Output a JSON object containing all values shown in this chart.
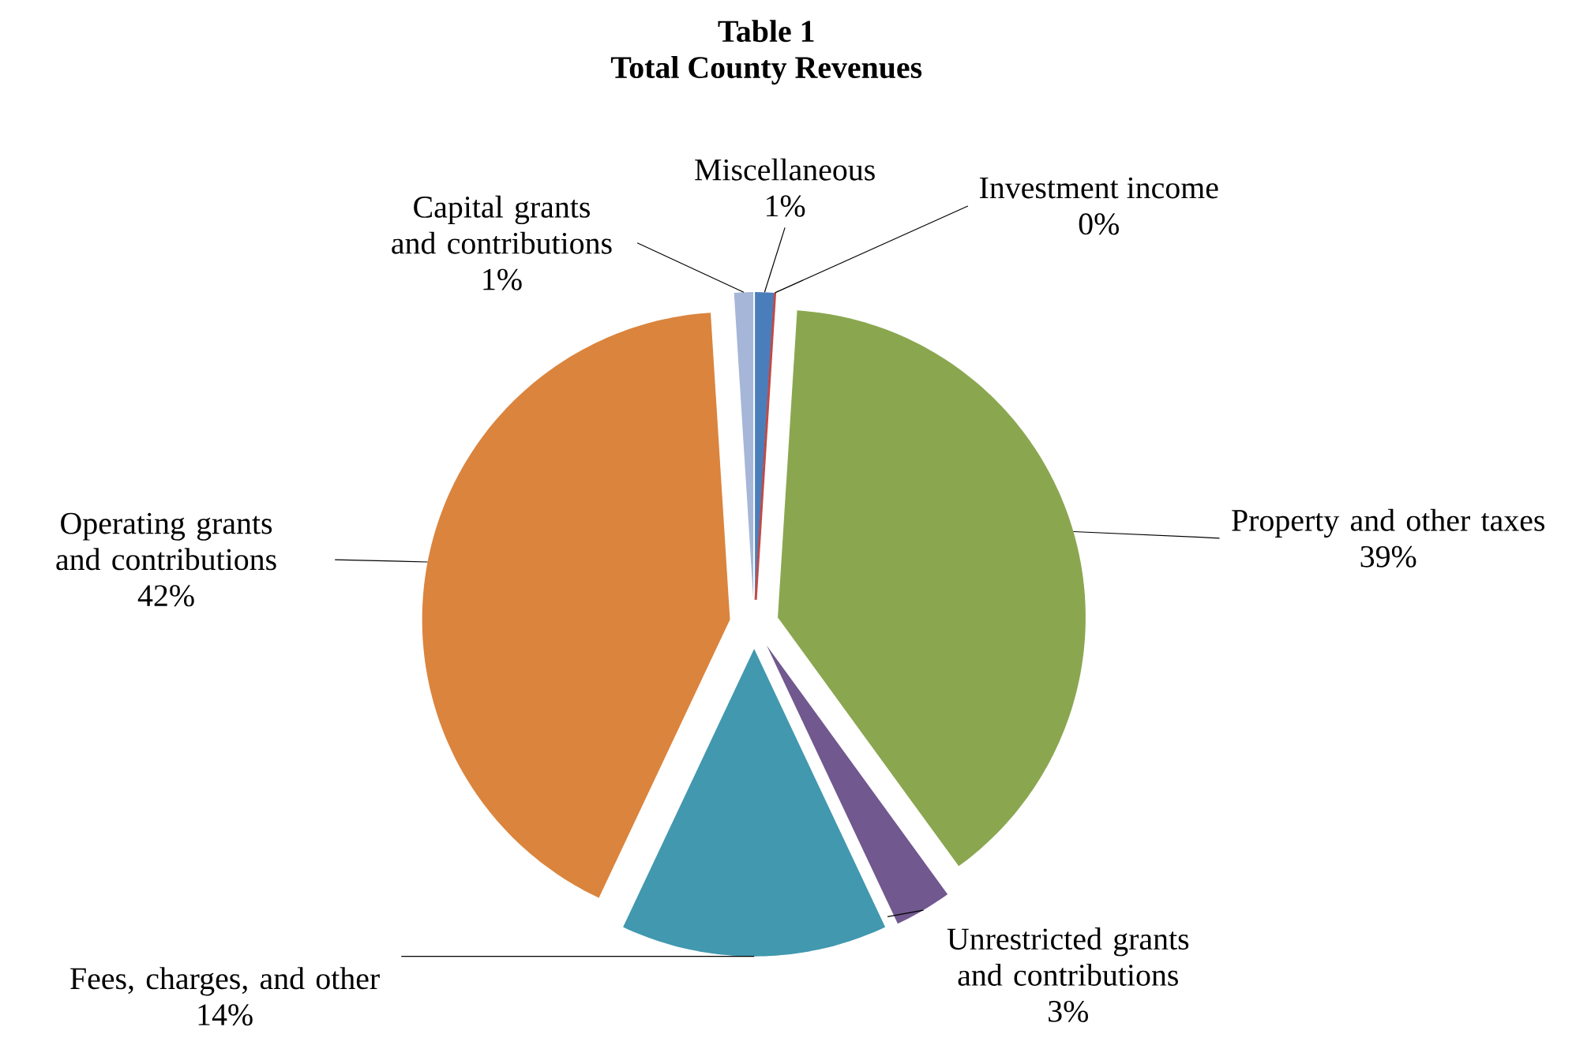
{
  "chart_data": {
    "type": "pie",
    "title": "Table 1",
    "subtitle": "Total County Revenues",
    "categories": [
      "Miscellaneous",
      "Investment income",
      "Property and other taxes",
      "Unrestricted grants and contributions",
      "Fees, charges, and other",
      "Operating grants and contributions",
      "Capital grants and contributions"
    ],
    "values": [
      1,
      0,
      39,
      3,
      14,
      42,
      1
    ],
    "value_labels": [
      "1%",
      "0%",
      "39%",
      "3%",
      "14%",
      "42%",
      "1%"
    ],
    "colors": [
      "#4a7ebb",
      "#be4b48",
      "#8aa750",
      "#71588f",
      "#4198af",
      "#db843d",
      "#a5b6d8"
    ]
  }
}
